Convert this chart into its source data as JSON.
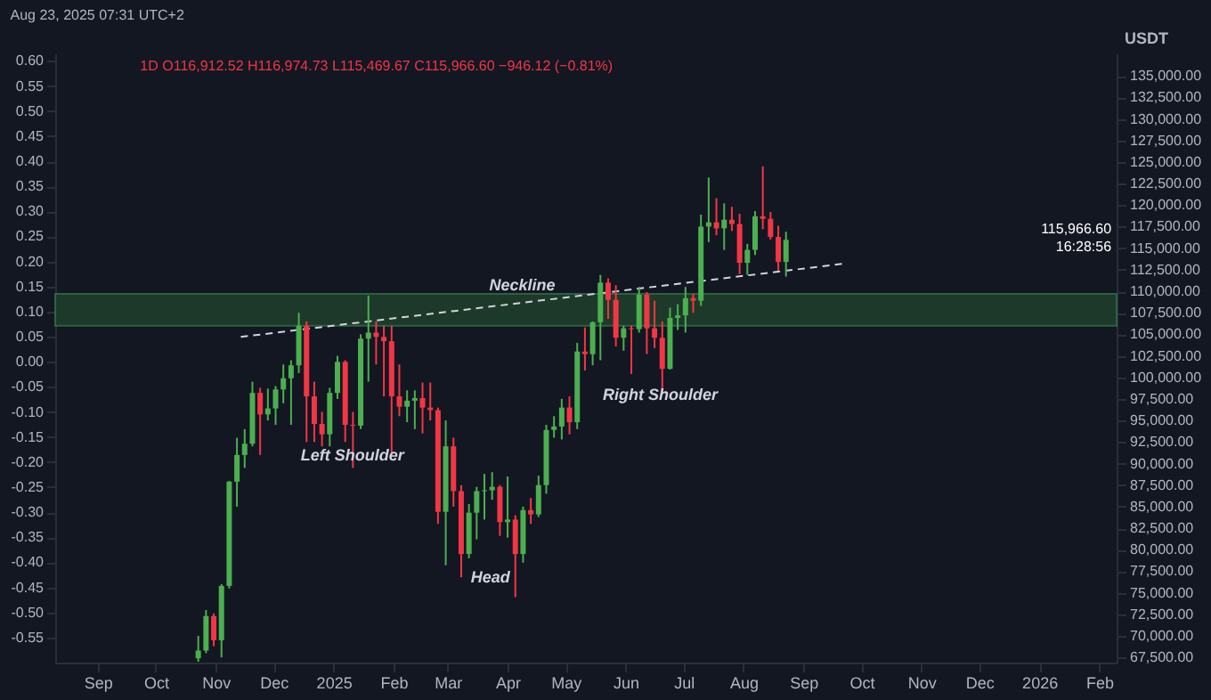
{
  "chart_data": {
    "type": "candlestick",
    "subtitle": "Aug 23, 2025 07:31 UTC+2",
    "y2label": "USDT",
    "annotations": [
      "1D  O116,912.52  H116,974.73  L115,469.67  C115,966.60  −946.12 (−0.81%)",
      "115,966.60\n16:28:56",
      "Neckline",
      "Left Shoulder",
      "Head",
      "Right Shoulder"
    ],
    "bands": [
      {
        "axis": "y2",
        "from": 106000,
        "to": 109700,
        "color": "#1e3d2a"
      }
    ],
    "xlim": [
      "2024-08-10",
      "2026-02-10"
    ],
    "xticks": [
      {
        "value": "2024-09-01",
        "label": "Sep"
      },
      {
        "value": "2024-10-01",
        "label": "Oct"
      },
      {
        "value": "2024-11-01",
        "label": "Nov"
      },
      {
        "value": "2024-12-01",
        "label": "Dec"
      },
      {
        "value": "2025-01-01",
        "label": "2025"
      },
      {
        "value": "2025-02-01",
        "label": "Feb"
      },
      {
        "value": "2025-03-01",
        "label": "Mar"
      },
      {
        "value": "2025-04-01",
        "label": "Apr"
      },
      {
        "value": "2025-05-01",
        "label": "May"
      },
      {
        "value": "2025-06-01",
        "label": "Jun"
      },
      {
        "value": "2025-07-01",
        "label": "Jul"
      },
      {
        "value": "2025-08-01",
        "label": "Aug"
      },
      {
        "value": "2025-09-01",
        "label": "Sep"
      },
      {
        "value": "2025-10-01",
        "label": "Oct"
      },
      {
        "value": "2025-11-01",
        "label": "Nov"
      },
      {
        "value": "2025-12-01",
        "label": "Dec"
      },
      {
        "value": "2026-01-01",
        "label": "2026"
      },
      {
        "value": "2026-02-01",
        "label": "Feb"
      }
    ],
    "ylim": [
      -0.6,
      0.615
    ],
    "yticks": [
      {
        "value": -0.55,
        "label": "-0.55"
      },
      {
        "value": -0.5,
        "label": "-0.50"
      },
      {
        "value": -0.45,
        "label": "-0.45"
      },
      {
        "value": -0.4,
        "label": "-0.40"
      },
      {
        "value": -0.35,
        "label": "-0.35"
      },
      {
        "value": -0.3,
        "label": "-0.30"
      },
      {
        "value": -0.25,
        "label": "-0.25"
      },
      {
        "value": -0.2,
        "label": "-0.20"
      },
      {
        "value": -0.15,
        "label": "-0.15"
      },
      {
        "value": -0.1,
        "label": "-0.10"
      },
      {
        "value": -0.05,
        "label": "-0.05"
      },
      {
        "value": 0,
        "label": "0.00"
      },
      {
        "value": 0.05,
        "label": "0.05"
      },
      {
        "value": 0.1,
        "label": "0.10"
      },
      {
        "value": 0.15,
        "label": "0.15"
      },
      {
        "value": 0.2,
        "label": "0.20"
      },
      {
        "value": 0.25,
        "label": "0.25"
      },
      {
        "value": 0.3,
        "label": "0.30"
      },
      {
        "value": 0.35,
        "label": "0.35"
      },
      {
        "value": 0.4,
        "label": "0.40"
      },
      {
        "value": 0.45,
        "label": "0.45"
      },
      {
        "value": 0.5,
        "label": "0.50"
      },
      {
        "value": 0.55,
        "label": "0.55"
      },
      {
        "value": 0.6,
        "label": "0.60"
      }
    ],
    "y2lim": [
      66900,
      137600
    ],
    "y2ticks": [
      {
        "value": 67500,
        "label": "67,500.00"
      },
      {
        "value": 70000,
        "label": "70,000.00"
      },
      {
        "value": 72500,
        "label": "72,500.00"
      },
      {
        "value": 75000,
        "label": "75,000.00"
      },
      {
        "value": 77500,
        "label": "77,500.00"
      },
      {
        "value": 80000,
        "label": "80,000.00"
      },
      {
        "value": 82500,
        "label": "82,500.00"
      },
      {
        "value": 85000,
        "label": "85,000.00"
      },
      {
        "value": 87500,
        "label": "87,500.00"
      },
      {
        "value": 90000,
        "label": "90,000.00"
      },
      {
        "value": 92500,
        "label": "92,500.00"
      },
      {
        "value": 95000,
        "label": "95,000.00"
      },
      {
        "value": 97500,
        "label": "97,500.00"
      },
      {
        "value": 100000,
        "label": "100,000.00"
      },
      {
        "value": 102500,
        "label": "102,500.00"
      },
      {
        "value": 105000,
        "label": "105,000.00"
      },
      {
        "value": 107500,
        "label": "107,500.00"
      },
      {
        "value": 110000,
        "label": "110,000.00"
      },
      {
        "value": 112500,
        "label": "112,500.00"
      },
      {
        "value": 115000,
        "label": "115,000.00"
      },
      {
        "value": 117500,
        "label": "117,500.00"
      },
      {
        "value": 120000,
        "label": "120,000.00"
      },
      {
        "value": 122500,
        "label": "122,500.00"
      },
      {
        "value": 125000,
        "label": "125,000.00"
      },
      {
        "value": 127500,
        "label": "127,500.00"
      },
      {
        "value": 130000,
        "label": "130,000.00"
      },
      {
        "value": 132500,
        "label": "132,500.00"
      },
      {
        "value": 135000,
        "label": "135,000.00"
      }
    ],
    "series": [
      {
        "type": "line",
        "axis": "y2",
        "color": "#d1d4dc",
        "line_style": "dashed",
        "x": [
          "2024-11-14",
          "2025-09-22"
        ],
        "values": [
          104700,
          113200
        ]
      },
      {
        "axis": "y2",
        "x": [
          "2024-10-23",
          "2024-10-27",
          "2024-10-31",
          "2024-11-04",
          "2024-11-08",
          "2024-11-12",
          "2024-11-16",
          "2024-11-20",
          "2024-11-24",
          "2024-11-28",
          "2024-12-02",
          "2024-12-06",
          "2024-12-10",
          "2024-12-14",
          "2024-12-18",
          "2024-12-22",
          "2024-12-26",
          "2024-12-30",
          "2025-01-03",
          "2025-01-07",
          "2025-01-11",
          "2025-01-15",
          "2025-01-19",
          "2025-01-23",
          "2025-01-27",
          "2025-01-31",
          "2025-02-04",
          "2025-02-08",
          "2025-02-12",
          "2025-02-16",
          "2025-02-20",
          "2025-02-24",
          "2025-02-28",
          "2025-03-04",
          "2025-03-08",
          "2025-03-12",
          "2025-03-16",
          "2025-03-20",
          "2025-03-24",
          "2025-03-28",
          "2025-04-01",
          "2025-04-05",
          "2025-04-09",
          "2025-04-13",
          "2025-04-17",
          "2025-04-21",
          "2025-04-25",
          "2025-04-29",
          "2025-05-03",
          "2025-05-07",
          "2025-05-11",
          "2025-05-15",
          "2025-05-19",
          "2025-05-23",
          "2025-05-27",
          "2025-05-31",
          "2025-06-04",
          "2025-06-08",
          "2025-06-12",
          "2025-06-16",
          "2025-06-20",
          "2025-06-24",
          "2025-06-28",
          "2025-07-02",
          "2025-07-06",
          "2025-07-10",
          "2025-07-14",
          "2025-07-18",
          "2025-07-22",
          "2025-07-26",
          "2025-07-30",
          "2025-08-03",
          "2025-08-07",
          "2025-08-11",
          "2025-08-15",
          "2025-08-19",
          "2025-08-23"
        ],
        "ohlc": [
          [
            67400,
            70000,
            67000,
            68300
          ],
          [
            68300,
            73000,
            68000,
            72300
          ],
          [
            72300,
            72600,
            68800,
            69500
          ],
          [
            69500,
            76000,
            67500,
            75800
          ],
          [
            75800,
            88000,
            75500,
            87900
          ],
          [
            87900,
            93000,
            85000,
            91000
          ],
          [
            91000,
            94000,
            89500,
            92300
          ],
          [
            92300,
            99500,
            92000,
            98200
          ],
          [
            98200,
            98800,
            91000,
            95700
          ],
          [
            95700,
            98700,
            95000,
            96400
          ],
          [
            96400,
            99000,
            94500,
            98600
          ],
          [
            98600,
            101500,
            97000,
            99900
          ],
          [
            99900,
            102000,
            94500,
            101400
          ],
          [
            101400,
            107500,
            100500,
            106000
          ],
          [
            106000,
            106500,
            92500,
            97800
          ],
          [
            97800,
            99500,
            92500,
            94600
          ],
          [
            94600,
            96000,
            92000,
            93400
          ],
          [
            93400,
            98800,
            92000,
            98200
          ],
          [
            98200,
            102500,
            97500,
            101800
          ],
          [
            101800,
            102000,
            92500,
            94500
          ],
          [
            94500,
            96000,
            89500,
            94400
          ],
          [
            94400,
            105000,
            94000,
            104500
          ],
          [
            104500,
            109500,
            99500,
            105200
          ],
          [
            105200,
            106500,
            101500,
            104700
          ],
          [
            104700,
            106000,
            97800,
            104200
          ],
          [
            104200,
            106000,
            91200,
            97800
          ],
          [
            97800,
            101500,
            95500,
            96600
          ],
          [
            96600,
            98500,
            94800,
            97300
          ],
          [
            97300,
            98500,
            94000,
            97600
          ],
          [
            97600,
            99400,
            93500,
            96500
          ],
          [
            96500,
            99400,
            95000,
            96200
          ],
          [
            96200,
            96500,
            83000,
            84400
          ],
          [
            84400,
            95000,
            78200,
            92000
          ],
          [
            92000,
            93000,
            85000,
            86800
          ],
          [
            86800,
            87500,
            76800,
            79500
          ],
          [
            79500,
            85300,
            79000,
            84300
          ],
          [
            84300,
            87300,
            81200,
            86800
          ],
          [
            86800,
            88800,
            83500,
            86900
          ],
          [
            86900,
            89000,
            85800,
            87300
          ],
          [
            87300,
            87500,
            81600,
            83200
          ],
          [
            83200,
            88500,
            81400,
            83500
          ],
          [
            83500,
            84000,
            74500,
            79500
          ],
          [
            79500,
            85000,
            78500,
            84600
          ],
          [
            84600,
            86000,
            83000,
            84100
          ],
          [
            84100,
            88600,
            83800,
            87500
          ],
          [
            87500,
            94500,
            86500,
            93900
          ],
          [
            93900,
            95500,
            93000,
            94300
          ],
          [
            94300,
            97500,
            92800,
            96500
          ],
          [
            96500,
            97800,
            93400,
            94800
          ],
          [
            94800,
            104000,
            94000,
            103000
          ],
          [
            103000,
            105800,
            100800,
            102700
          ],
          [
            102700,
            106500,
            101400,
            106400
          ],
          [
            106400,
            111900,
            102000,
            111000
          ],
          [
            111000,
            111500,
            106800,
            109000
          ],
          [
            109000,
            110700,
            103600,
            104600
          ],
          [
            104600,
            106000,
            103100,
            105700
          ],
          [
            105700,
            106000,
            100400,
            105600
          ],
          [
            105600,
            110500,
            105200,
            109600
          ],
          [
            109600,
            109900,
            102700,
            105700
          ],
          [
            105700,
            108900,
            103400,
            104600
          ],
          [
            104600,
            106500,
            98200,
            101000
          ],
          [
            101000,
            108100,
            100900,
            106900
          ],
          [
            106900,
            108500,
            105500,
            107200
          ],
          [
            107200,
            110500,
            105200,
            109200
          ],
          [
            109200,
            109700,
            107500,
            108900
          ],
          [
            108900,
            118900,
            108300,
            117500
          ],
          [
            117500,
            123200,
            115700,
            118000
          ],
          [
            118000,
            120800,
            116500,
            117300
          ],
          [
            117300,
            120200,
            114800,
            118300
          ],
          [
            118300,
            119800,
            117000,
            117800
          ],
          [
            117800,
            119000,
            112000,
            113300
          ],
          [
            113300,
            115500,
            111900,
            114800
          ],
          [
            114800,
            119300,
            114200,
            118700
          ],
          [
            118700,
            124500,
            117200,
            118400
          ],
          [
            118400,
            119200,
            116000,
            116300
          ],
          [
            116300,
            117600,
            112400,
            113400
          ],
          [
            113400,
            116900,
            111700,
            115966.6
          ]
        ],
        "colors": [
          "#4caf50",
          "#4caf50",
          "#f23645",
          "#4caf50",
          "#4caf50",
          "#4caf50",
          "#4caf50",
          "#4caf50",
          "#f23645",
          "#4caf50",
          "#4caf50",
          "#4caf50",
          "#4caf50",
          "#4caf50",
          "#f23645",
          "#f23645",
          "#f23645",
          "#4caf50",
          "#4caf50",
          "#f23645",
          "#f23645",
          "#4caf50",
          "#4caf50",
          "#f23645",
          "#f23645",
          "#f23645",
          "#f23645",
          "#4caf50",
          "#4caf50",
          "#f23645",
          "#f23645",
          "#f23645",
          "#4caf50",
          "#f23645",
          "#f23645",
          "#4caf50",
          "#4caf50",
          "#4caf50",
          "#4caf50",
          "#f23645",
          "#4caf50",
          "#f23645",
          "#4caf50",
          "#f23645",
          "#4caf50",
          "#4caf50",
          "#4caf50",
          "#4caf50",
          "#f23645",
          "#4caf50",
          "#f23645",
          "#4caf50",
          "#4caf50",
          "#f23645",
          "#f23645",
          "#4caf50",
          "#f23645",
          "#4caf50",
          "#f23645",
          "#f23645",
          "#f23645",
          "#4caf50",
          "#4caf50",
          "#4caf50",
          "#f23645",
          "#4caf50",
          "#4caf50",
          "#f23645",
          "#4caf50",
          "#f23645",
          "#f23645",
          "#4caf50",
          "#4caf50",
          "#f23645",
          "#f23645",
          "#f23645",
          "#4caf50"
        ]
      }
    ]
  }
}
